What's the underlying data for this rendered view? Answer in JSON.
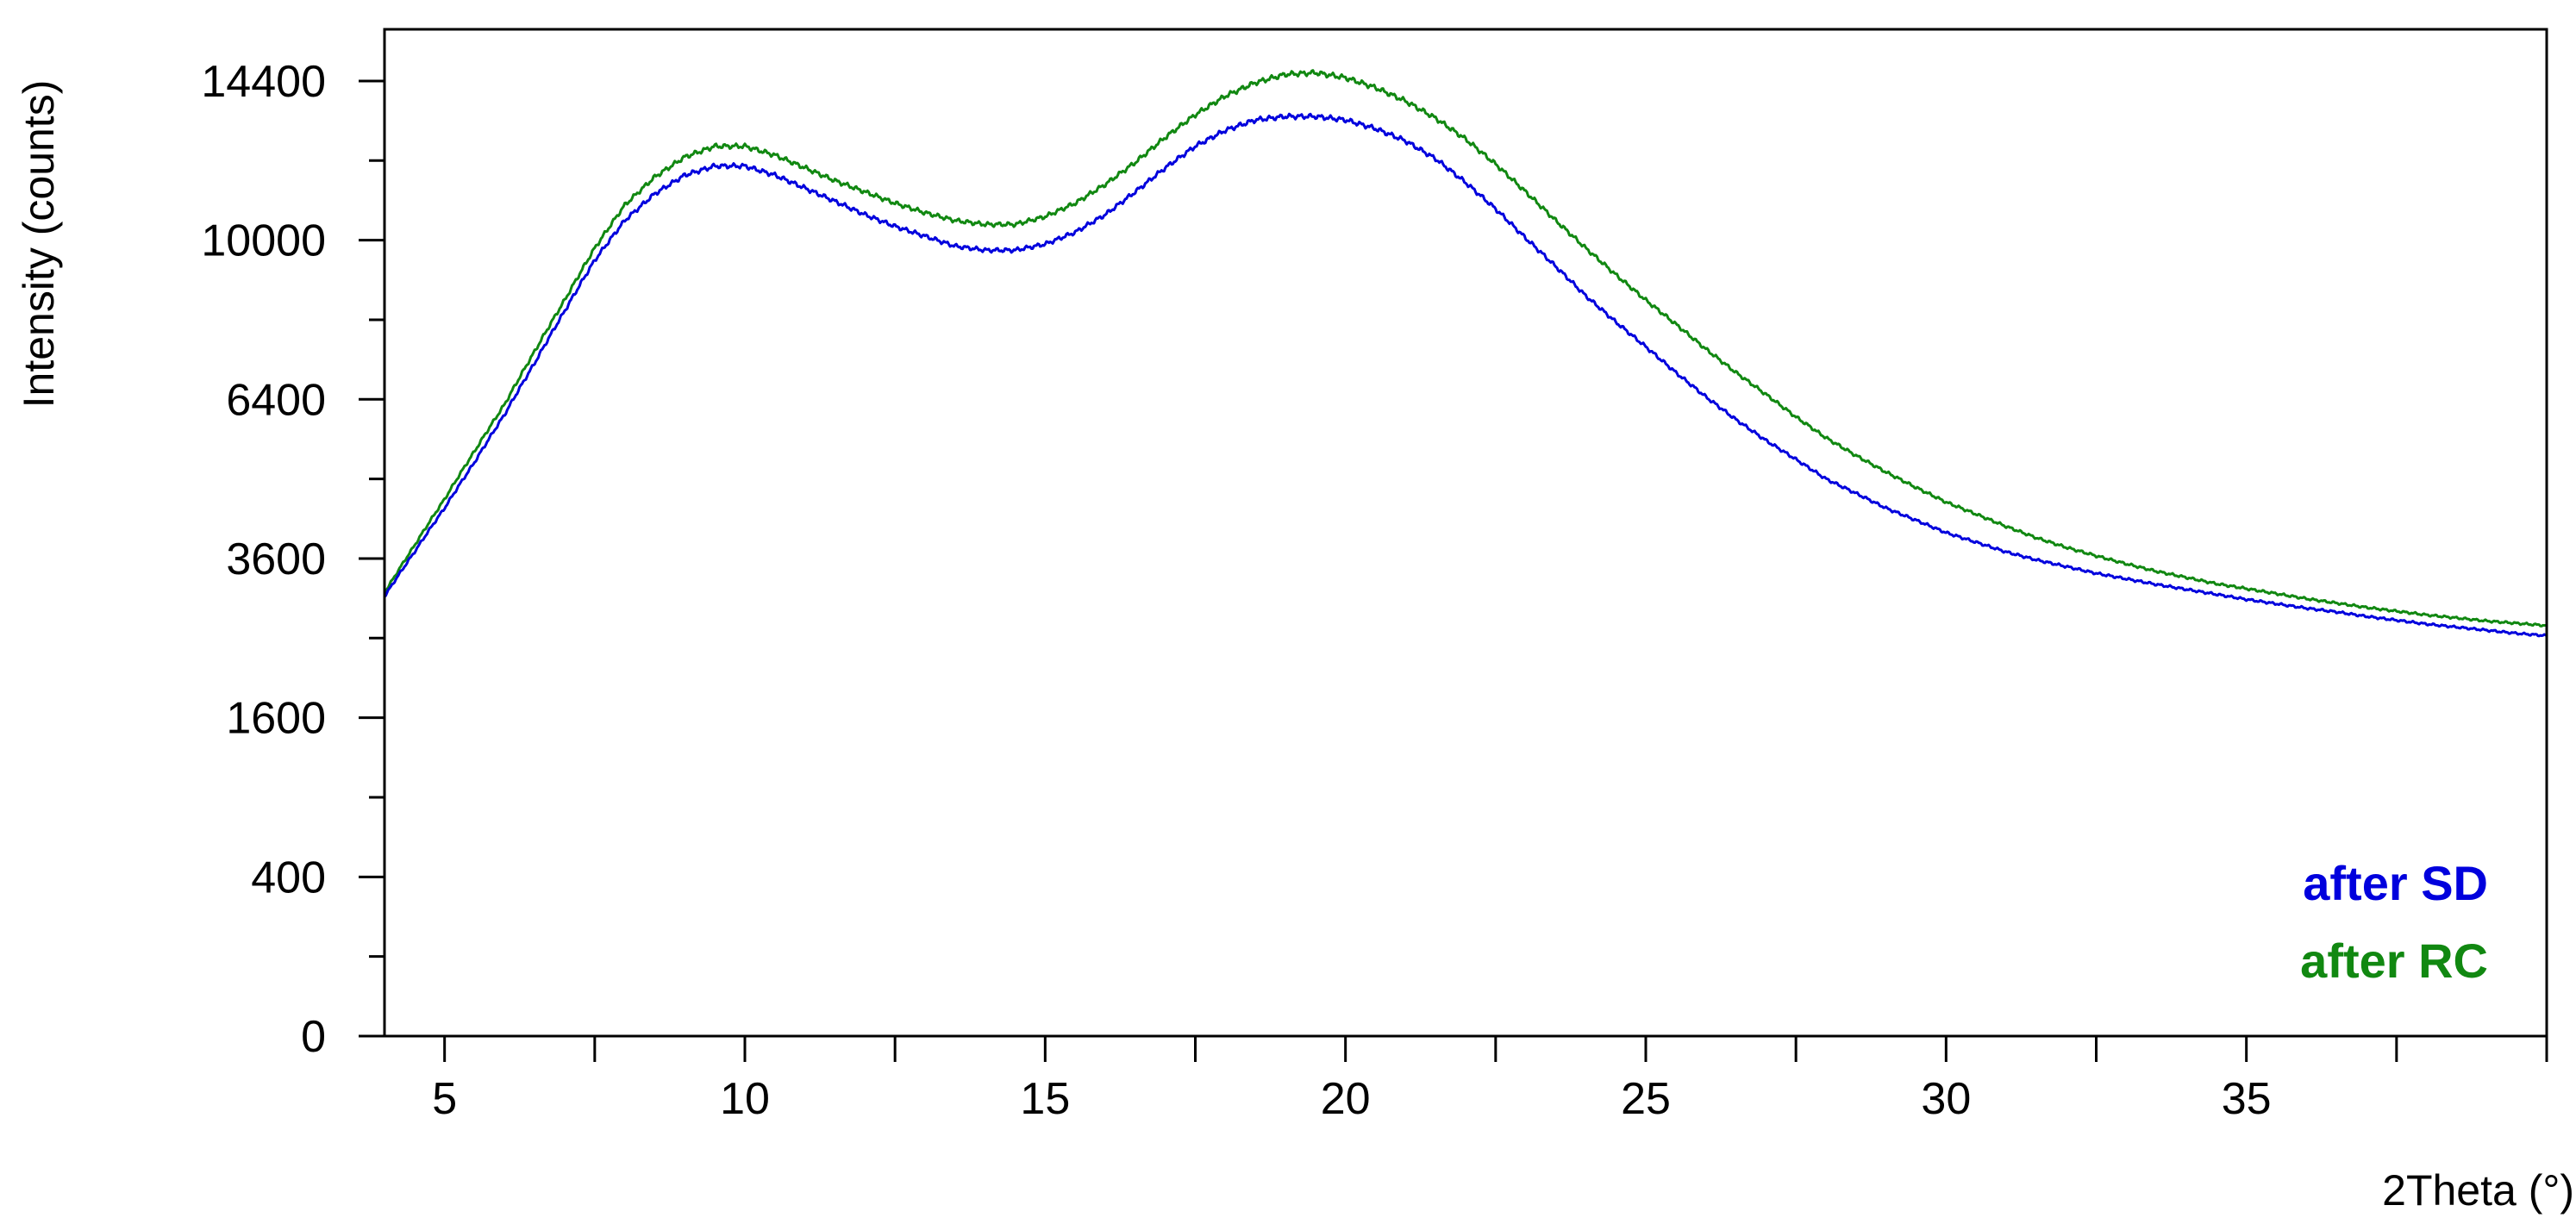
{
  "chart_data": {
    "type": "line",
    "title": "",
    "xlabel": "2Theta (°)",
    "ylabel": "Intensity (counts)",
    "y_scale": "sqrt",
    "xlim": [
      4,
      40
    ],
    "ylim": [
      0,
      16000
    ],
    "x_ticks": [
      5,
      10,
      15,
      20,
      25,
      30,
      35
    ],
    "x_tick_labels": [
      "5",
      "10",
      "15",
      "20",
      "25",
      "30",
      "35"
    ],
    "y_ticks": [
      0,
      400,
      1600,
      3600,
      6400,
      10000,
      14400
    ],
    "y_tick_labels": [
      "0",
      "400",
      "1600",
      "3600",
      "6400",
      "10000",
      "14400"
    ],
    "grid": false,
    "legend_position": "bottom-right",
    "series": [
      {
        "name": "after SD",
        "color": "#0000dd",
        "x": [
          4,
          4.5,
          5,
          5.5,
          6,
          6.5,
          7,
          7.5,
          8,
          8.5,
          9,
          9.5,
          10,
          10.5,
          11,
          11.5,
          12,
          12.5,
          13,
          13.5,
          14,
          14.5,
          15,
          15.5,
          16,
          16.5,
          17,
          17.5,
          18,
          18.5,
          19,
          19.5,
          20,
          20.5,
          21,
          21.5,
          22,
          22.5,
          23,
          23.5,
          24,
          24.5,
          25,
          25.5,
          26,
          26.5,
          27,
          27.5,
          28,
          28.5,
          29,
          29.5,
          30,
          30.5,
          31,
          31.5,
          32,
          32.5,
          33,
          33.5,
          34,
          34.5,
          35,
          35.5,
          36,
          36.5,
          37,
          37.5,
          38,
          38.5,
          39,
          39.5,
          40
        ],
        "y": [
          3050,
          3700,
          4400,
          5200,
          6100,
          7150,
          8300,
          9500,
          10500,
          11200,
          11700,
          11950,
          11950,
          11700,
          11350,
          11000,
          10650,
          10350,
          10100,
          9850,
          9750,
          9750,
          9900,
          10200,
          10650,
          11250,
          11900,
          12500,
          12950,
          13250,
          13350,
          13350,
          13250,
          13000,
          12650,
          12150,
          11500,
          10800,
          10050,
          9350,
          8650,
          8050,
          7500,
          6950,
          6450,
          6000,
          5600,
          5250,
          4900,
          4650,
          4400,
          4200,
          4000,
          3850,
          3700,
          3580,
          3480,
          3380,
          3300,
          3220,
          3150,
          3080,
          3010,
          2950,
          2890,
          2840,
          2780,
          2730,
          2680,
          2640,
          2600,
          2560,
          2530
        ]
      },
      {
        "name": "after RC",
        "color": "#118811",
        "x": [
          4,
          4.5,
          5,
          5.5,
          6,
          6.5,
          7,
          7.5,
          8,
          8.5,
          9,
          9.5,
          10,
          10.5,
          11,
          11.5,
          12,
          12.5,
          13,
          13.5,
          14,
          14.5,
          15,
          15.5,
          16,
          16.5,
          17,
          17.5,
          18,
          18.5,
          19,
          19.5,
          20,
          20.5,
          21,
          21.5,
          22,
          22.5,
          23,
          23.5,
          24,
          24.5,
          25,
          25.5,
          26,
          26.5,
          27,
          27.5,
          28,
          28.5,
          29,
          29.5,
          30,
          30.5,
          31,
          31.5,
          32,
          32.5,
          33,
          33.5,
          34,
          34.5,
          35,
          35.5,
          36,
          36.5,
          37,
          37.5,
          38,
          38.5,
          39,
          39.5,
          40
        ],
        "y": [
          3100,
          3800,
          4550,
          5400,
          6300,
          7400,
          8550,
          9800,
          10900,
          11650,
          12200,
          12500,
          12500,
          12250,
          11900,
          11550,
          11250,
          10950,
          10700,
          10500,
          10400,
          10400,
          10600,
          10950,
          11450,
          12050,
          12750,
          13400,
          13950,
          14350,
          14600,
          14650,
          14500,
          14200,
          13800,
          13300,
          12700,
          12000,
          11250,
          10500,
          9800,
          9150,
          8550,
          8000,
          7450,
          6950,
          6500,
          6050,
          5650,
          5320,
          5020,
          4750,
          4500,
          4300,
          4100,
          3920,
          3770,
          3640,
          3520,
          3410,
          3320,
          3230,
          3160,
          3090,
          3020,
          2960,
          2900,
          2850,
          2800,
          2760,
          2720,
          2690,
          2660
        ]
      }
    ]
  }
}
